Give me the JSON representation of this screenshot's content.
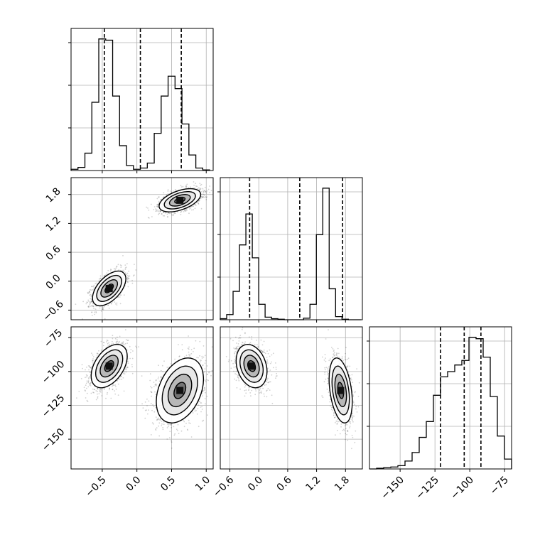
{
  "chart_data": [
    {
      "type": "histogram",
      "panel": "hist-p1",
      "xlim": [
        -0.95,
        1.1
      ],
      "xticks": [
        -0.5,
        0.0,
        0.5,
        1.0
      ],
      "bin_start": -0.95,
      "bin_width": 0.1,
      "counts": [
        2,
        5,
        28,
        110,
        212,
        210,
        120,
        40,
        8,
        2,
        4,
        12,
        60,
        120,
        152,
        132,
        75,
        25,
        4,
        1
      ],
      "quantiles": [
        -0.47,
        0.05,
        0.64
      ],
      "grid": true
    },
    {
      "type": "scatter",
      "panel": "scatter-p1-p2",
      "xlim": [
        -0.95,
        1.1
      ],
      "ylim": [
        -0.8,
        2.15
      ],
      "yticks": [
        -0.6,
        0.0,
        0.6,
        1.2,
        1.8
      ],
      "ytick_labels": [
        "−0.6",
        "0.0",
        "0.6",
        "1.2",
        "1.8"
      ],
      "clusters": [
        {
          "center": [
            -0.4,
            -0.15
          ],
          "sd": [
            0.12,
            0.18
          ],
          "rho": 0.55
        },
        {
          "center": [
            0.62,
            1.68
          ],
          "sd": [
            0.15,
            0.12
          ],
          "rho": 0.5
        }
      ],
      "grid": true
    },
    {
      "type": "histogram",
      "panel": "hist-p2",
      "xlim": [
        -0.8,
        2.15
      ],
      "xticks": [
        -0.6,
        0.0,
        0.6,
        1.2,
        1.8
      ],
      "xtick_labels": [
        "−0.6",
        "0.0",
        "0.6",
        "1.2",
        "1.8"
      ],
      "bin_start": -0.8,
      "bin_width": 0.133,
      "counts": [
        2,
        10,
        55,
        145,
        205,
        120,
        30,
        5,
        2,
        1,
        0,
        0,
        0,
        3,
        30,
        165,
        255,
        60,
        6,
        1,
        0,
        0
      ],
      "quantiles": [
        -0.19,
        0.85,
        1.74
      ],
      "grid": true
    },
    {
      "type": "scatter",
      "panel": "scatter-p1-p3",
      "xlim": [
        -0.95,
        1.1
      ],
      "ylim": [
        -172,
        -67
      ],
      "yticks": [
        -150,
        -125,
        -100,
        -75
      ],
      "ytick_labels": [
        "−150",
        "−125",
        "−100",
        "−75"
      ],
      "clusters": [
        {
          "center": [
            -0.4,
            -96
          ],
          "sd": [
            0.13,
            8
          ],
          "rho": 0.45
        },
        {
          "center": [
            0.62,
            -114
          ],
          "sd": [
            0.17,
            12
          ],
          "rho": 0.35
        }
      ],
      "grid": true
    },
    {
      "type": "scatter",
      "panel": "scatter-p2-p3",
      "xlim": [
        -0.8,
        2.15
      ],
      "ylim": [
        -172,
        -67
      ],
      "clusters": [
        {
          "center": [
            -0.15,
            -96
          ],
          "sd": [
            0.16,
            8
          ],
          "rho": -0.25
        },
        {
          "center": [
            1.7,
            -114
          ],
          "sd": [
            0.12,
            12
          ],
          "rho": -0.35
        }
      ],
      "grid": true
    },
    {
      "type": "histogram",
      "panel": "hist-p3",
      "xlim": [
        -172,
        -70
      ],
      "xticks": [
        -150,
        -125,
        -100,
        -75
      ],
      "xtick_labels": [
        "−150",
        "−125",
        "−100",
        "−75"
      ],
      "bin_start": -172,
      "bin_width": 5.1,
      "counts": [
        0,
        1,
        2,
        3,
        5,
        12,
        25,
        48,
        72,
        112,
        140,
        148,
        158,
        165,
        200,
        198,
        170,
        110,
        50,
        15,
        4
      ],
      "quantiles": [
        -121,
        -104,
        -92
      ],
      "grid": true
    }
  ],
  "legend": {}
}
